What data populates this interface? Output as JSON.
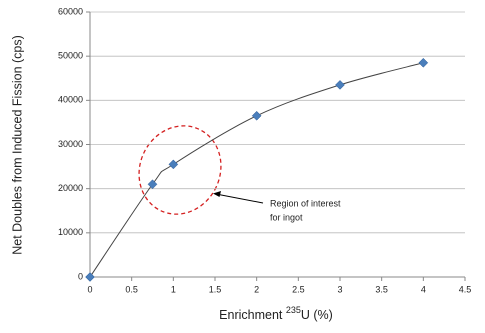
{
  "chart_data": {
    "type": "scatter",
    "x_label": [
      "Enrichment ",
      "235",
      "U (%)"
    ],
    "y_label": "Net Doubles from Induced Fission (cps)",
    "x": [
      0,
      0.75,
      1,
      2,
      3,
      4
    ],
    "series": [
      {
        "color": "#4a7ebb",
        "values": [
          0,
          21000,
          25500,
          36500,
          43500,
          48500
        ]
      }
    ],
    "xlim": [
      0,
      4.5
    ],
    "xticks": [
      0,
      0.5,
      1,
      1.5,
      2,
      2.5,
      3,
      3.5,
      4,
      4.5
    ],
    "ylim": [
      0,
      60000
    ],
    "yticks": [
      0,
      10000,
      20000,
      30000,
      40000,
      50000,
      60000
    ],
    "grid": true,
    "annotation": [
      "Region of interest",
      "for ingot"
    ]
  }
}
